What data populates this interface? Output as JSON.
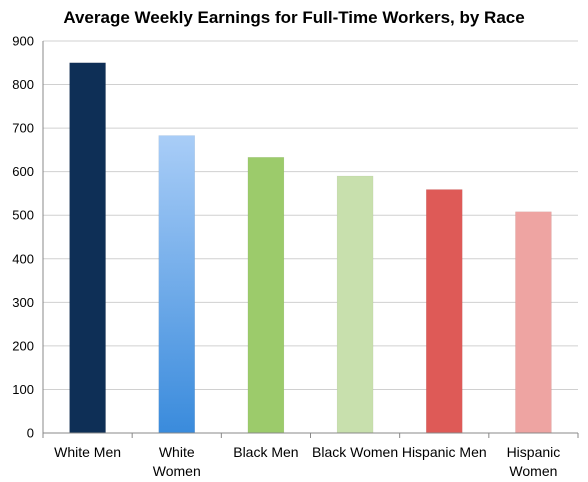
{
  "chart_data": {
    "type": "bar",
    "title": "Average Weekly Earnings for Full-Time Workers, by Race",
    "xlabel": "",
    "ylabel": "",
    "ylim": [
      0,
      900
    ],
    "yticks": [
      0,
      100,
      200,
      300,
      400,
      500,
      600,
      700,
      800,
      900
    ],
    "grid": true,
    "legend": "none",
    "categories": [
      [
        "White Men"
      ],
      [
        "White",
        "Women"
      ],
      [
        "Black Men"
      ],
      [
        "Black Women"
      ],
      [
        "Hispanic Men"
      ],
      [
        "Hispanic",
        "Women"
      ]
    ],
    "values": [
      850,
      683,
      633,
      590,
      559,
      508
    ],
    "colors": [
      "#0e2f56",
      "#4a90d9",
      "#9ccb6b",
      "#c8e0ad",
      "#de5a57",
      "#eea4a2"
    ]
  }
}
